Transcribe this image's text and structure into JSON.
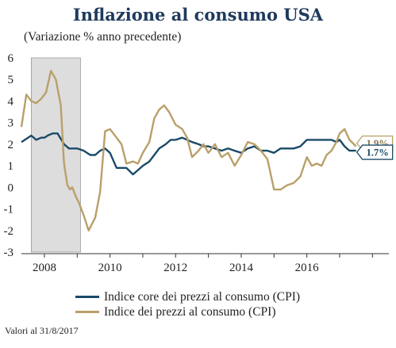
{
  "title": "Inflazione al consumo USA",
  "subtitle": "(Variazione % anno precedente)",
  "footnote": "Valori al 31/8/2017",
  "colors": {
    "core": "#1a4a68",
    "cpi": "#b9a06a",
    "recession": "#dddddd"
  },
  "chart_data": {
    "type": "line",
    "title": "Inflazione al consumo USA",
    "subtitle": "(Variazione % anno precedente)",
    "xlabel": "",
    "ylabel": "",
    "xlim": [
      2007.3,
      2018.5
    ],
    "ylim": [
      -3,
      6
    ],
    "yticks": [
      -3,
      -2,
      -1,
      0,
      1,
      2,
      3,
      4,
      5,
      6
    ],
    "xtick_labels": [
      "2008",
      "2010",
      "2012",
      "2014",
      "2016"
    ],
    "grid": false,
    "legend": "bottom",
    "shaded_regions": [
      {
        "x0": 2007.6,
        "x1": 2009.1,
        "label": ""
      }
    ],
    "series": [
      {
        "name": "Indice core dei prezzi al consumo (CPI)",
        "color": "#1a4a68",
        "x": [
          2007.3,
          2007.5,
          2007.6,
          2007.75,
          2007.9,
          2008.0,
          2008.1,
          2008.25,
          2008.4,
          2008.6,
          2008.75,
          2008.9,
          2009.0,
          2009.2,
          2009.4,
          2009.55,
          2009.7,
          2009.85,
          2010.0,
          2010.2,
          2010.35,
          2010.5,
          2010.7,
          2010.85,
          2011.0,
          2011.2,
          2011.35,
          2011.5,
          2011.7,
          2011.85,
          2012.0,
          2012.2,
          2012.35,
          2012.5,
          2012.7,
          2012.85,
          2013.0,
          2013.2,
          2013.4,
          2013.6,
          2013.8,
          2014.0,
          2014.2,
          2014.4,
          2014.6,
          2014.8,
          2015.0,
          2015.2,
          2015.4,
          2015.6,
          2015.8,
          2016.0,
          2016.15,
          2016.3,
          2016.45,
          2016.6,
          2016.75,
          2016.9,
          2017.0,
          2017.15,
          2017.3,
          2017.5
        ],
        "y": [
          2.1,
          2.3,
          2.4,
          2.2,
          2.3,
          2.3,
          2.4,
          2.5,
          2.5,
          2.0,
          1.8,
          1.8,
          1.8,
          1.7,
          1.5,
          1.5,
          1.7,
          1.8,
          1.6,
          0.9,
          0.9,
          0.9,
          0.6,
          0.8,
          1.0,
          1.2,
          1.5,
          1.8,
          2.0,
          2.2,
          2.2,
          2.3,
          2.2,
          2.1,
          2.0,
          1.9,
          1.9,
          1.8,
          1.7,
          1.8,
          1.7,
          1.6,
          1.8,
          1.9,
          1.7,
          1.7,
          1.6,
          1.8,
          1.8,
          1.8,
          1.9,
          2.2,
          2.2,
          2.2,
          2.2,
          2.2,
          2.2,
          2.1,
          2.2,
          1.9,
          1.7,
          1.7
        ]
      },
      {
        "name": "Indice dei prezzi al consumo (CPI)",
        "color": "#b9a06a",
        "x": [
          2007.3,
          2007.45,
          2007.6,
          2007.75,
          2007.9,
          2008.05,
          2008.2,
          2008.35,
          2008.5,
          2008.6,
          2008.7,
          2008.78,
          2008.85,
          2008.95,
          2009.05,
          2009.2,
          2009.35,
          2009.55,
          2009.7,
          2009.85,
          2010.0,
          2010.2,
          2010.35,
          2010.5,
          2010.7,
          2010.85,
          2011.0,
          2011.2,
          2011.35,
          2011.5,
          2011.65,
          2011.8,
          2012.0,
          2012.2,
          2012.35,
          2012.5,
          2012.7,
          2012.85,
          2013.0,
          2013.2,
          2013.4,
          2013.6,
          2013.8,
          2014.0,
          2014.2,
          2014.4,
          2014.6,
          2014.8,
          2015.0,
          2015.2,
          2015.4,
          2015.6,
          2015.8,
          2016.0,
          2016.15,
          2016.3,
          2016.45,
          2016.6,
          2016.75,
          2016.9,
          2017.0,
          2017.15,
          2017.3,
          2017.5
        ],
        "y": [
          2.8,
          4.3,
          4.0,
          3.9,
          4.1,
          4.4,
          5.4,
          5.0,
          3.8,
          1.1,
          0.1,
          -0.1,
          0.0,
          -0.4,
          -0.7,
          -1.3,
          -2.0,
          -1.4,
          -0.2,
          2.6,
          2.7,
          2.3,
          2.0,
          1.1,
          1.2,
          1.1,
          1.6,
          2.1,
          3.2,
          3.6,
          3.8,
          3.5,
          2.9,
          2.7,
          2.3,
          1.4,
          1.7,
          2.0,
          1.6,
          2.0,
          1.4,
          1.6,
          1.0,
          1.5,
          2.1,
          2.0,
          1.7,
          1.3,
          -0.1,
          -0.1,
          0.1,
          0.2,
          0.5,
          1.4,
          1.0,
          1.1,
          1.0,
          1.5,
          1.7,
          2.1,
          2.5,
          2.7,
          2.2,
          1.9
        ]
      }
    ],
    "end_labels": [
      {
        "series": "Indice dei prezzi al consumo (CPI)",
        "value": 1.9,
        "label": "1.9%"
      },
      {
        "series": "Indice core dei prezzi al consumo (CPI)",
        "value": 1.7,
        "label": "1.7%"
      }
    ]
  }
}
